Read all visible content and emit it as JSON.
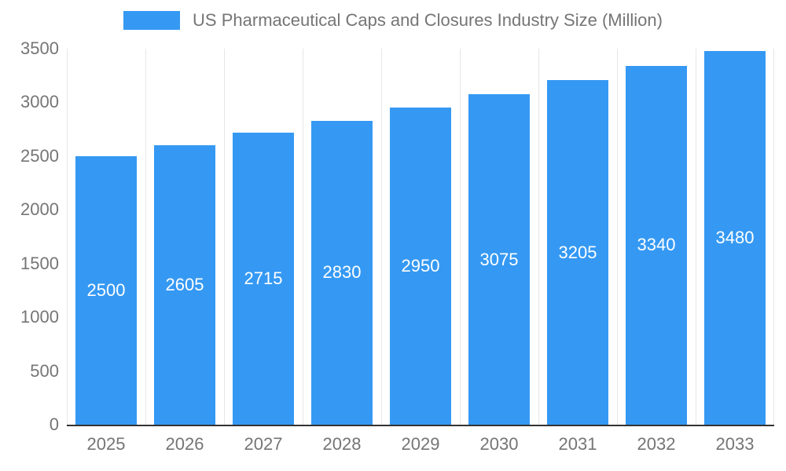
{
  "chart_data": {
    "type": "bar",
    "title": "US Pharmaceutical Caps and Closures Industry Size (Million)",
    "categories": [
      "2025",
      "2026",
      "2027",
      "2028",
      "2029",
      "2030",
      "2031",
      "2032",
      "2033"
    ],
    "values": [
      2500,
      2605,
      2715,
      2830,
      2950,
      3075,
      3205,
      3340,
      3480
    ],
    "xlabel": "",
    "ylabel": "",
    "ylim": [
      0,
      3500
    ],
    "y_ticks": [
      0,
      500,
      1000,
      1500,
      2000,
      2500,
      3000,
      3500
    ],
    "grid": "vertical",
    "legend_position": "top",
    "bar_color": "#3599F3",
    "bar_label_color": "#ffffff",
    "axis_text_color": "#757575",
    "axis_line_color": "#333333",
    "gridline_color": "#e6e6e6"
  }
}
